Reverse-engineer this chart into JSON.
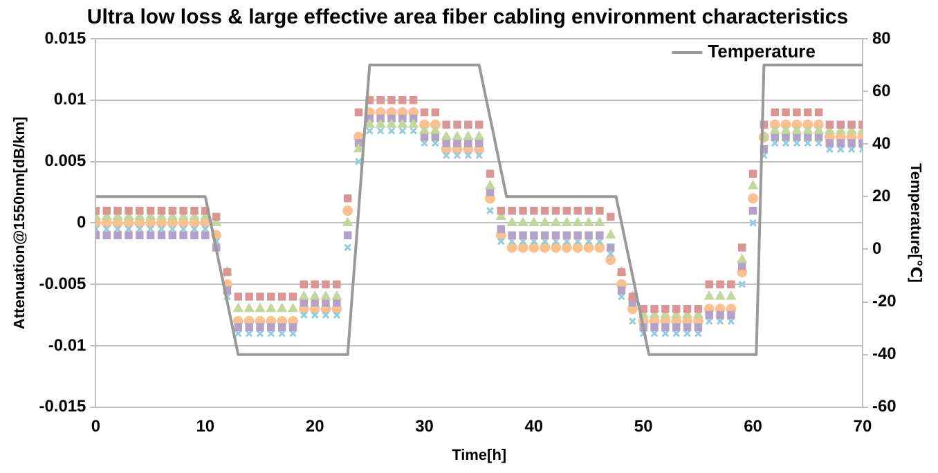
{
  "chart_data": {
    "type": "scatter",
    "title": "Ultra low loss & large effective area fiber cabling environment characteristics",
    "xlabel": "Time[h]",
    "ylabel": "Attenuation@1550nm[dB/km]",
    "y2label": "Temperature[℃]",
    "x": [
      0,
      1,
      2,
      3,
      4,
      5,
      6,
      7,
      8,
      9,
      10,
      11,
      12,
      13,
      14,
      15,
      16,
      17,
      18,
      19,
      20,
      21,
      22,
      23,
      24,
      25,
      26,
      27,
      28,
      29,
      30,
      31,
      32,
      33,
      34,
      35,
      36,
      37,
      38,
      39,
      40,
      41,
      42,
      43,
      44,
      45,
      46,
      47,
      48,
      49,
      50,
      51,
      52,
      53,
      54,
      55,
      56,
      57,
      58,
      59,
      60,
      61,
      62,
      63,
      64,
      65,
      66,
      67,
      68,
      69,
      70
    ],
    "series": [
      {
        "color": "#d99694",
        "marker": "square",
        "values": [
          0.001,
          0.001,
          0.001,
          0.001,
          0.001,
          0.001,
          0.001,
          0.001,
          0.001,
          0.001,
          0.001,
          0.0005,
          -0.004,
          -0.006,
          -0.006,
          -0.006,
          -0.006,
          -0.006,
          -0.006,
          -0.005,
          -0.005,
          -0.005,
          -0.005,
          0.002,
          0.009,
          0.01,
          0.01,
          0.01,
          0.01,
          0.01,
          0.009,
          0.009,
          0.008,
          0.008,
          0.008,
          0.008,
          0.004,
          0.001,
          0.001,
          0.001,
          0.001,
          0.001,
          0.001,
          0.001,
          0.001,
          0.001,
          0.001,
          0.0005,
          -0.004,
          -0.006,
          -0.007,
          -0.007,
          -0.007,
          -0.007,
          -0.007,
          -0.007,
          -0.005,
          -0.005,
          -0.005,
          -0.002,
          0.004,
          0.008,
          0.009,
          0.009,
          0.009,
          0.009,
          0.009,
          0.008,
          0.008,
          0.008,
          0.008
        ]
      },
      {
        "color": "#c3d69b",
        "marker": "triangle",
        "values": [
          0.0005,
          0.0005,
          0.0005,
          0.0005,
          0.0005,
          0.0005,
          0.0005,
          0.0005,
          0.0005,
          0.0005,
          0.0005,
          0,
          -0.004,
          -0.007,
          -0.007,
          -0.007,
          -0.007,
          -0.007,
          -0.007,
          -0.006,
          -0.006,
          -0.006,
          -0.006,
          0,
          0.006,
          0.008,
          0.008,
          0.008,
          0.008,
          0.008,
          0.0075,
          0.0075,
          0.007,
          0.007,
          0.007,
          0.007,
          0.003,
          0.0005,
          0,
          0,
          0,
          0,
          0,
          0,
          0,
          0,
          0,
          -0.001,
          -0.004,
          -0.006,
          -0.0075,
          -0.0075,
          -0.0075,
          -0.0075,
          -0.0075,
          -0.0075,
          -0.006,
          -0.006,
          -0.006,
          -0.003,
          0.003,
          0.007,
          0.0075,
          0.0075,
          0.0075,
          0.0075,
          0.0075,
          0.0075,
          0.0075,
          0.0075,
          0.0075
        ]
      },
      {
        "color": "#b3a2c7",
        "marker": "square",
        "values": [
          -0.001,
          -0.001,
          -0.001,
          -0.001,
          -0.001,
          -0.001,
          -0.001,
          -0.001,
          -0.001,
          -0.001,
          -0.001,
          -0.002,
          -0.0055,
          -0.0085,
          -0.0085,
          -0.0085,
          -0.0085,
          -0.0085,
          -0.0085,
          -0.0065,
          -0.0065,
          -0.0065,
          -0.0065,
          -0.001,
          0.0065,
          0.0085,
          0.0085,
          0.0085,
          0.0085,
          0.0085,
          0.007,
          0.007,
          0.0065,
          0.0065,
          0.0065,
          0.0065,
          0.0025,
          -0.0005,
          -0.001,
          -0.001,
          -0.001,
          -0.001,
          -0.001,
          -0.001,
          -0.001,
          -0.001,
          -0.001,
          -0.002,
          -0.0055,
          -0.0065,
          -0.0085,
          -0.0085,
          -0.0085,
          -0.0085,
          -0.0085,
          -0.0085,
          -0.0075,
          -0.0075,
          -0.0075,
          -0.0035,
          0.001,
          0.006,
          0.007,
          0.007,
          0.007,
          0.007,
          0.007,
          0.0065,
          0.0065,
          0.0065,
          0.0065
        ]
      },
      {
        "color": "#93cddd",
        "marker": "cross",
        "values": [
          -0.0005,
          -0.0005,
          -0.0005,
          -0.0005,
          -0.0005,
          -0.0005,
          -0.0005,
          -0.0005,
          -0.0005,
          -0.0005,
          -0.0005,
          -0.0015,
          -0.006,
          -0.009,
          -0.009,
          -0.009,
          -0.009,
          -0.009,
          -0.009,
          -0.0075,
          -0.0075,
          -0.0075,
          -0.0075,
          -0.002,
          0.005,
          0.0075,
          0.0075,
          0.0075,
          0.0075,
          0.0075,
          0.0065,
          0.0065,
          0.0055,
          0.0055,
          0.0055,
          0.0055,
          0.001,
          -0.0015,
          -0.0015,
          -0.0015,
          -0.0015,
          -0.0015,
          -0.0015,
          -0.0015,
          -0.0015,
          -0.0015,
          -0.0015,
          -0.0025,
          -0.006,
          -0.008,
          -0.009,
          -0.009,
          -0.009,
          -0.009,
          -0.009,
          -0.009,
          -0.008,
          -0.008,
          -0.008,
          -0.005,
          0,
          0.0055,
          0.0065,
          0.0065,
          0.0065,
          0.0065,
          0.0065,
          0.006,
          0.006,
          0.006,
          0.006
        ]
      },
      {
        "color": "#fac090",
        "marker": "circle",
        "values": [
          0,
          0,
          0,
          0,
          0,
          0,
          0,
          0,
          0,
          0,
          0,
          -0.001,
          -0.005,
          -0.008,
          -0.008,
          -0.008,
          -0.008,
          -0.008,
          -0.008,
          -0.007,
          -0.007,
          -0.007,
          -0.007,
          0.001,
          0.007,
          0.009,
          0.009,
          0.009,
          0.009,
          0.009,
          0.008,
          0.008,
          0.006,
          0.006,
          0.006,
          0.006,
          0.002,
          -0.001,
          -0.002,
          -0.002,
          -0.002,
          -0.002,
          -0.002,
          -0.002,
          -0.002,
          -0.002,
          -0.002,
          -0.003,
          -0.005,
          -0.007,
          -0.008,
          -0.008,
          -0.008,
          -0.008,
          -0.008,
          -0.008,
          -0.007,
          -0.007,
          -0.007,
          -0.004,
          0.002,
          0.007,
          0.008,
          0.008,
          0.008,
          0.008,
          0.008,
          0.007,
          0.007,
          0.007,
          0.007
        ]
      },
      {
        "type": "line",
        "name": "Temperature",
        "axis": "y2",
        "color": "#999999",
        "marker": "none",
        "x": [
          0,
          10,
          13,
          23,
          25,
          35,
          37.5,
          47.5,
          50.5,
          60.3,
          61,
          70
        ],
        "values": [
          20,
          20,
          -40,
          -40,
          70,
          70,
          20,
          20,
          -40,
          -40,
          70,
          70
        ]
      }
    ],
    "xlim": [
      0,
      70
    ],
    "xticks": [
      0,
      10,
      20,
      30,
      40,
      50,
      60,
      70
    ],
    "ylim": [
      -0.015,
      0.015
    ],
    "yticks": [
      -0.015,
      -0.01,
      -0.005,
      0,
      0.005,
      0.01,
      0.015
    ],
    "y2lim": [
      -60,
      80
    ],
    "y2ticks": [
      -60,
      -40,
      -20,
      0,
      20,
      40,
      60,
      80
    ],
    "grid": "y",
    "legend": "top right"
  }
}
